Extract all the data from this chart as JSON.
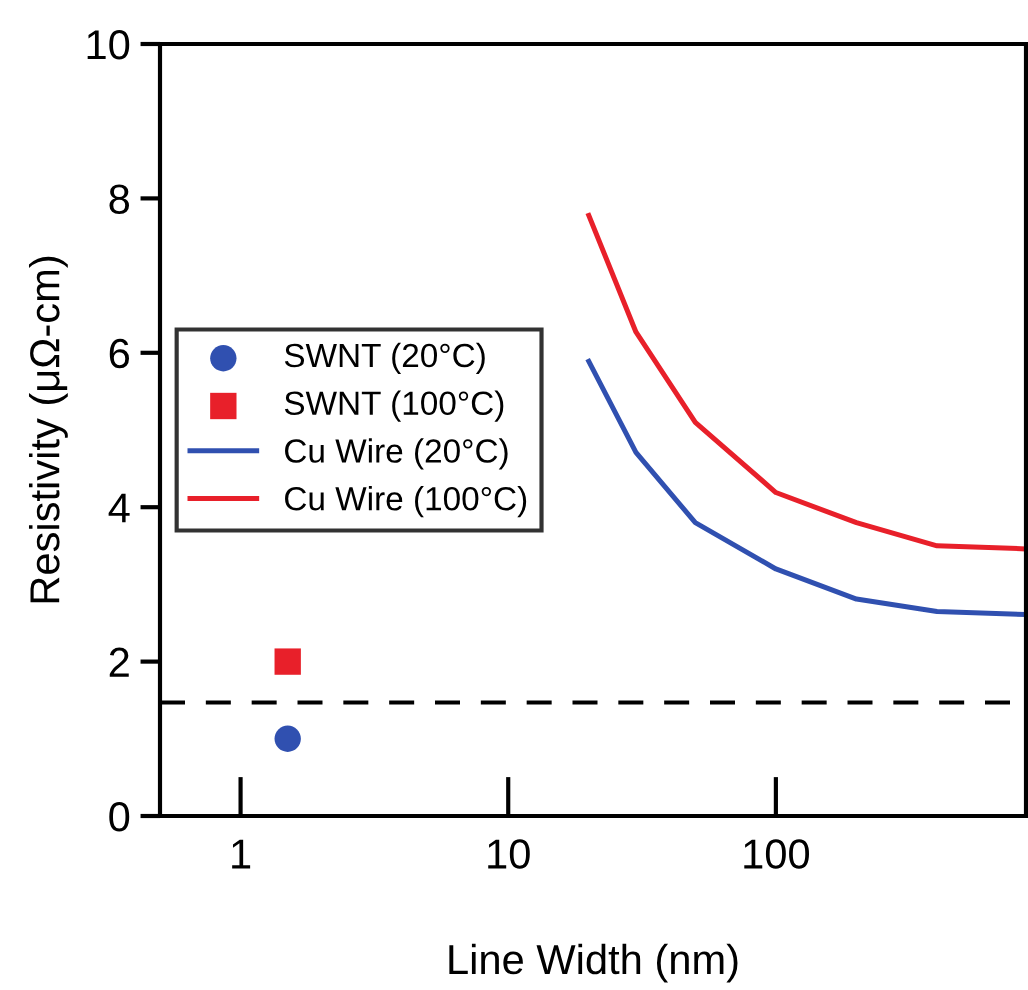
{
  "chart_data": {
    "type": "line",
    "xlabel": "Line Width (nm)",
    "ylabel": "Resistivity (μΩ-cm)",
    "log": "x",
    "xlim": [
      0.5,
      860
    ],
    "ylim": [
      0,
      10
    ],
    "xticks": [
      1,
      10,
      100
    ],
    "yticks": [
      0,
      2,
      4,
      6,
      8,
      10
    ],
    "legend": "center left",
    "grid": false,
    "ref_lines": [
      {
        "axis": "y",
        "value": 1.47,
        "label": null,
        "color": "#000000",
        "line_style": "dashed"
      }
    ],
    "series": [
      {
        "name": "SWNT (20°C)",
        "type": "scatter",
        "marker": "circle",
        "color": "#3050b0",
        "x": [
          1.5
        ],
        "values": [
          1.0
        ]
      },
      {
        "name": "SWNT (100°C)",
        "type": "scatter",
        "marker": "square",
        "color": "#e8202a",
        "x": [
          1.5
        ],
        "values": [
          2.0
        ]
      },
      {
        "name": "Cu Wire (20°C)",
        "color": "#3050b0",
        "x": [
          20,
          30,
          50,
          100,
          200,
          400,
          860
        ],
        "values": [
          5.89,
          4.71,
          3.8,
          3.2,
          2.81,
          2.65,
          2.61
        ]
      },
      {
        "name": "Cu Wire (100°C)",
        "color": "#e8202a",
        "x": [
          20,
          30,
          50,
          100,
          200,
          400,
          860
        ],
        "values": [
          7.78,
          6.27,
          5.1,
          4.19,
          3.8,
          3.5,
          3.46
        ]
      }
    ]
  }
}
